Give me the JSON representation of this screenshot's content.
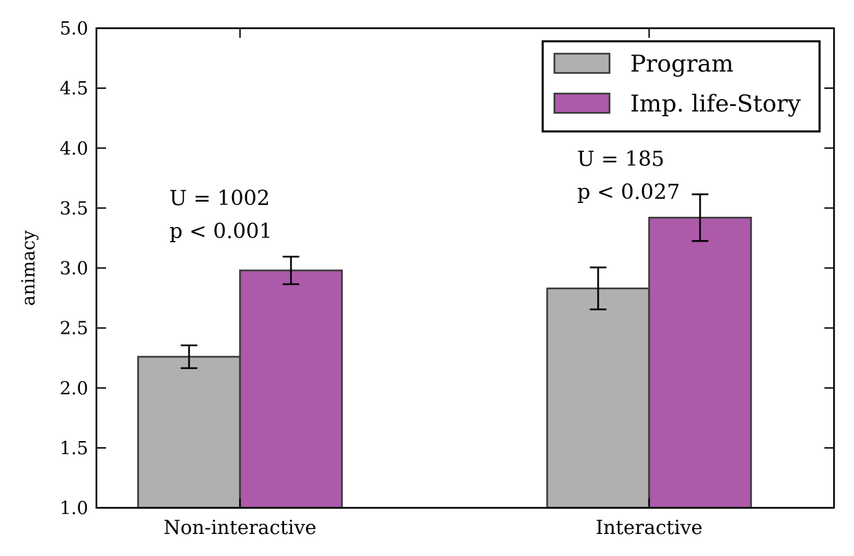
{
  "chart_data": {
    "type": "bar",
    "categories": [
      "Non-interactive",
      "Interactive"
    ],
    "series": [
      {
        "name": "Program",
        "color": "#b0b0b0",
        "values": [
          2.26,
          2.83
        ],
        "err": [
          0.095,
          0.175
        ]
      },
      {
        "name": "Imp. life-Story",
        "color": "#ad5aab",
        "values": [
          2.98,
          3.42
        ],
        "err": [
          0.115,
          0.195
        ]
      }
    ],
    "ylabel": "animacy",
    "ylim": [
      1.0,
      5.0
    ],
    "yticks": [
      "1.0",
      "1.5",
      "2.0",
      "2.5",
      "3.0",
      "3.5",
      "4.0",
      "4.5",
      "5.0"
    ],
    "legend_position": "top-right",
    "grid": false,
    "annotations": [
      {
        "category": "Non-interactive",
        "line1": "U = 1002",
        "line2": "p < 0.001"
      },
      {
        "category": "Interactive",
        "line1": "U = 185",
        "line2": "p < 0.027"
      }
    ]
  }
}
